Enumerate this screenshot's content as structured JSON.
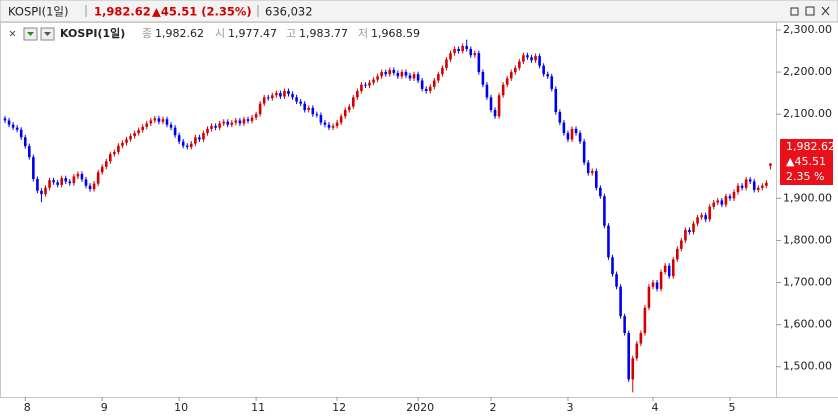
{
  "header": {
    "symbol": "KOSPI(1일)",
    "price": "1,982.62",
    "change": "▲45.51 (2.35%)",
    "volume": "636,032"
  },
  "legend": {
    "name": "KOSPI(1일)",
    "close_label": "종",
    "close": "1,982.62",
    "open_label": "시",
    "open": "1,977.47",
    "high_label": "고",
    "high": "1,983.77",
    "low_label": "저",
    "low": "1,968.59"
  },
  "price_tag": {
    "price": "1,982.62",
    "change": "▲45.51",
    "percent": "2.35 %"
  },
  "chart_data": {
    "type": "candlestick",
    "up_color": "#d40000",
    "down_color": "#0000f0",
    "categories": [
      null,
      null,
      null,
      null,
      null,
      "8",
      null,
      null,
      null,
      null,
      null,
      null,
      null,
      null,
      null,
      null,
      null,
      null,
      null,
      null,
      null,
      null,
      null,
      null,
      "9",
      null,
      null,
      null,
      null,
      null,
      null,
      null,
      null,
      null,
      null,
      null,
      null,
      null,
      null,
      null,
      null,
      null,
      null,
      "10",
      null,
      null,
      null,
      null,
      null,
      null,
      null,
      null,
      null,
      null,
      null,
      null,
      null,
      null,
      null,
      null,
      null,
      null,
      "11",
      null,
      null,
      null,
      null,
      null,
      null,
      null,
      null,
      null,
      null,
      null,
      null,
      null,
      null,
      null,
      null,
      null,
      null,
      null,
      "12",
      null,
      null,
      null,
      null,
      null,
      null,
      null,
      null,
      null,
      null,
      null,
      null,
      null,
      null,
      null,
      null,
      null,
      null,
      null,
      "2020",
      null,
      null,
      null,
      null,
      null,
      null,
      null,
      null,
      null,
      null,
      null,
      null,
      null,
      null,
      null,
      null,
      null,
      "2",
      null,
      null,
      null,
      null,
      null,
      null,
      null,
      null,
      null,
      null,
      null,
      null,
      null,
      null,
      null,
      null,
      null,
      null,
      "3",
      null,
      null,
      null,
      null,
      null,
      null,
      null,
      null,
      null,
      null,
      null,
      null,
      null,
      null,
      null,
      null,
      null,
      null,
      null,
      null,
      "4",
      null,
      null,
      null,
      null,
      null,
      null,
      null,
      null,
      null,
      null,
      null,
      null,
      null,
      null,
      null,
      null,
      null,
      null,
      "5",
      null,
      null,
      null,
      null,
      null,
      null,
      null,
      null,
      null,
      null
    ],
    "open": [
      2090,
      2085,
      2075,
      2068,
      2063,
      2045,
      2024,
      1998,
      1946,
      1918,
      1910,
      1925,
      1943,
      1938,
      1932,
      1948,
      1940,
      1936,
      1952,
      1958,
      1945,
      1930,
      1922,
      1935,
      1962,
      1975,
      1988,
      2005,
      2010,
      2025,
      2032,
      2040,
      2048,
      2055,
      2062,
      2070,
      2078,
      2085,
      2090,
      2082,
      2088,
      2075,
      2068,
      2050,
      2035,
      2025,
      2022,
      2030,
      2045,
      2040,
      2055,
      2065,
      2072,
      2068,
      2078,
      2082,
      2075,
      2080,
      2085,
      2078,
      2088,
      2084,
      2092,
      2100,
      2125,
      2140,
      2138,
      2145,
      2150,
      2142,
      2155,
      2148,
      2140,
      2130,
      2125,
      2110,
      2115,
      2100,
      2098,
      2080,
      2075,
      2068,
      2072,
      2080,
      2095,
      2110,
      2118,
      2140,
      2155,
      2170,
      2168,
      2175,
      2182,
      2190,
      2200,
      2195,
      2205,
      2198,
      2190,
      2200,
      2192,
      2185,
      2195,
      2180,
      2160,
      2155,
      2165,
      2180,
      2195,
      2210,
      2230,
      2245,
      2255,
      2250,
      2262,
      2255,
      2240,
      2245,
      2200,
      2170,
      2140,
      2110,
      2095,
      2145,
      2170,
      2185,
      2200,
      2210,
      2225,
      2240,
      2235,
      2228,
      2238,
      2215,
      2195,
      2190,
      2160,
      2105,
      2080,
      2055,
      2040,
      2065,
      2055,
      2035,
      1985,
      1960,
      1965,
      1925,
      1905,
      1835,
      1760,
      1720,
      1690,
      1620,
      1580,
      1470,
      1520,
      1555,
      1580,
      1640,
      1690,
      1700,
      1685,
      1725,
      1740,
      1715,
      1755,
      1780,
      1800,
      1825,
      1820,
      1840,
      1855,
      1860,
      1850,
      1880,
      1890,
      1895,
      1885,
      1905,
      1900,
      1915,
      1930,
      1925,
      1945,
      1940,
      1920,
      1925,
      1930,
      1977.47
    ],
    "high": [
      2096,
      2091,
      2081,
      2074,
      2069,
      2051,
      2030,
      2004,
      1952,
      1924,
      1931,
      1949,
      1949,
      1944,
      1954,
      1954,
      1946,
      1958,
      1964,
      1964,
      1951,
      1936,
      1941,
      1968,
      1981,
      1994,
      2011,
      2016,
      2031,
      2038,
      2046,
      2054,
      2061,
      2068,
      2076,
      2084,
      2091,
      2096,
      2096,
      2094,
      2094,
      2081,
      2074,
      2056,
      2041,
      2031,
      2036,
      2051,
      2051,
      2061,
      2071,
      2078,
      2078,
      2084,
      2088,
      2088,
      2086,
      2091,
      2091,
      2094,
      2094,
      2098,
      2106,
      2131,
      2146,
      2146,
      2151,
      2156,
      2156,
      2161,
      2161,
      2154,
      2146,
      2136,
      2131,
      2121,
      2121,
      2106,
      2104,
      2086,
      2081,
      2078,
      2086,
      2101,
      2116,
      2124,
      2146,
      2161,
      2176,
      2176,
      2181,
      2188,
      2196,
      2206,
      2206,
      2211,
      2211,
      2204,
      2206,
      2206,
      2198,
      2201,
      2201,
      2186,
      2166,
      2171,
      2186,
      2201,
      2216,
      2236,
      2251,
      2261,
      2261,
      2268,
      2277,
      2261,
      2251,
      2251,
      2206,
      2176,
      2146,
      2116,
      2151,
      2176,
      2191,
      2206,
      2216,
      2231,
      2246,
      2246,
      2241,
      2244,
      2244,
      2221,
      2201,
      2196,
      2166,
      2111,
      2086,
      2061,
      2071,
      2071,
      2061,
      2041,
      1991,
      1971,
      1971,
      1931,
      1911,
      1841,
      1766,
      1726,
      1696,
      1626,
      1586,
      1526,
      1561,
      1586,
      1646,
      1696,
      1706,
      1706,
      1731,
      1746,
      1746,
      1761,
      1786,
      1806,
      1831,
      1831,
      1846,
      1861,
      1866,
      1866,
      1886,
      1896,
      1901,
      1901,
      1911,
      1911,
      1921,
      1936,
      1936,
      1951,
      1951,
      1946,
      1931,
      1936,
      1943,
      1983.77
    ],
    "low": [
      2079,
      2069,
      2062,
      2057,
      2039,
      2018,
      1992,
      1940,
      1912,
      1891,
      1904,
      1919,
      1932,
      1926,
      1926,
      1934,
      1930,
      1930,
      1946,
      1939,
      1924,
      1916,
      1916,
      1929,
      1956,
      1969,
      1982,
      1999,
      2004,
      2019,
      2026,
      2034,
      2042,
      2049,
      2056,
      2064,
      2072,
      2079,
      2076,
      2076,
      2069,
      2062,
      2044,
      2029,
      2019,
      2016,
      2016,
      2024,
      2034,
      2034,
      2049,
      2059,
      2062,
      2062,
      2072,
      2069,
      2069,
      2074,
      2072,
      2072,
      2078,
      2078,
      2086,
      2094,
      2119,
      2132,
      2132,
      2139,
      2136,
      2136,
      2142,
      2134,
      2124,
      2119,
      2104,
      2104,
      2094,
      2092,
      2074,
      2069,
      2062,
      2062,
      2066,
      2074,
      2089,
      2104,
      2112,
      2134,
      2149,
      2162,
      2162,
      2169,
      2176,
      2184,
      2189,
      2189,
      2192,
      2184,
      2184,
      2186,
      2179,
      2179,
      2174,
      2154,
      2149,
      2149,
      2159,
      2174,
      2189,
      2204,
      2224,
      2239,
      2244,
      2244,
      2249,
      2234,
      2234,
      2194,
      2164,
      2134,
      2104,
      2089,
      2089,
      2139,
      2164,
      2179,
      2194,
      2204,
      2219,
      2229,
      2222,
      2222,
      2209,
      2189,
      2184,
      2154,
      2099,
      2074,
      2049,
      2034,
      2034,
      2049,
      2029,
      1979,
      1954,
      1954,
      1919,
      1899,
      1829,
      1754,
      1714,
      1684,
      1614,
      1574,
      1464,
      1439,
      1514,
      1549,
      1574,
      1634,
      1684,
      1679,
      1679,
      1719,
      1709,
      1709,
      1749,
      1774,
      1794,
      1814,
      1814,
      1834,
      1849,
      1844,
      1844,
      1874,
      1884,
      1879,
      1879,
      1894,
      1894,
      1909,
      1919,
      1919,
      1934,
      1914,
      1914,
      1919,
      1924,
      1968.59
    ],
    "close": [
      2085,
      2075,
      2068,
      2063,
      2045,
      2024,
      1998,
      1946,
      1918,
      1910,
      1925,
      1943,
      1938,
      1932,
      1948,
      1940,
      1936,
      1952,
      1958,
      1945,
      1930,
      1922,
      1935,
      1962,
      1975,
      1988,
      2005,
      2010,
      2025,
      2032,
      2040,
      2048,
      2055,
      2062,
      2070,
      2078,
      2085,
      2090,
      2082,
      2088,
      2075,
      2068,
      2050,
      2035,
      2025,
      2022,
      2030,
      2045,
      2040,
      2055,
      2065,
      2072,
      2068,
      2078,
      2082,
      2075,
      2080,
      2085,
      2078,
      2088,
      2084,
      2092,
      2100,
      2125,
      2140,
      2138,
      2145,
      2150,
      2142,
      2155,
      2148,
      2140,
      2130,
      2125,
      2110,
      2115,
      2100,
      2098,
      2080,
      2075,
      2068,
      2072,
      2080,
      2095,
      2110,
      2118,
      2140,
      2155,
      2170,
      2168,
      2175,
      2182,
      2190,
      2200,
      2195,
      2205,
      2198,
      2190,
      2200,
      2192,
      2185,
      2195,
      2180,
      2160,
      2155,
      2165,
      2180,
      2195,
      2210,
      2230,
      2245,
      2255,
      2250,
      2262,
      2255,
      2240,
      2245,
      2200,
      2170,
      2140,
      2110,
      2095,
      2145,
      2170,
      2185,
      2200,
      2210,
      2225,
      2240,
      2235,
      2228,
      2238,
      2215,
      2195,
      2190,
      2160,
      2105,
      2080,
      2055,
      2040,
      2065,
      2055,
      2035,
      1985,
      1960,
      1965,
      1925,
      1905,
      1835,
      1760,
      1720,
      1690,
      1620,
      1580,
      1470,
      1520,
      1555,
      1580,
      1640,
      1690,
      1700,
      1685,
      1725,
      1740,
      1715,
      1755,
      1780,
      1800,
      1825,
      1820,
      1840,
      1855,
      1860,
      1850,
      1880,
      1890,
      1895,
      1885,
      1905,
      1900,
      1915,
      1930,
      1925,
      1945,
      1940,
      1920,
      1925,
      1930,
      1937.11,
      1982.62
    ],
    "ylim": [
      1428,
      2319
    ],
    "yticks": [
      {
        "value": 1500,
        "label": "1,500.00"
      },
      {
        "value": 1600,
        "label": "1,600.00"
      },
      {
        "value": 1700,
        "label": "1,700.00"
      },
      {
        "value": 1800,
        "label": "1,800.00"
      },
      {
        "value": 1900,
        "label": "1,900.00"
      },
      {
        "value": 2100,
        "label": "2,100.00"
      },
      {
        "value": 2200,
        "label": "2,200.00"
      },
      {
        "value": 2300,
        "label": "2,300.00"
      }
    ]
  }
}
